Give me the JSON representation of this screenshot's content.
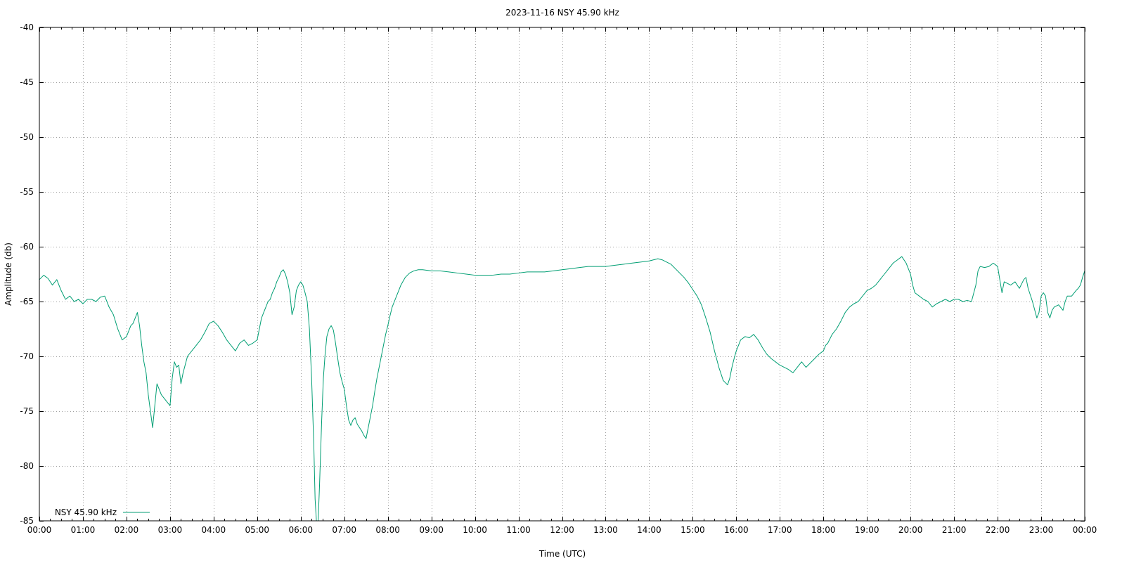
{
  "chart_data": {
    "type": "line",
    "title": "2023-11-16 NSY 45.90 kHz",
    "xlabel": "Time (UTC)",
    "ylabel": "Amplitude (db)",
    "xlim": [
      0,
      24
    ],
    "ylim": [
      -85,
      -40
    ],
    "grid": true,
    "legend_position": "bottom-left",
    "x_ticks": [
      {
        "value": 0,
        "label": "00:00"
      },
      {
        "value": 1,
        "label": "01:00"
      },
      {
        "value": 2,
        "label": "02:00"
      },
      {
        "value": 3,
        "label": "03:00"
      },
      {
        "value": 4,
        "label": "04:00"
      },
      {
        "value": 5,
        "label": "05:00"
      },
      {
        "value": 6,
        "label": "06:00"
      },
      {
        "value": 7,
        "label": "07:00"
      },
      {
        "value": 8,
        "label": "08:00"
      },
      {
        "value": 9,
        "label": "09:00"
      },
      {
        "value": 10,
        "label": "10:00"
      },
      {
        "value": 11,
        "label": "11:00"
      },
      {
        "value": 12,
        "label": "12:00"
      },
      {
        "value": 13,
        "label": "13:00"
      },
      {
        "value": 14,
        "label": "14:00"
      },
      {
        "value": 15,
        "label": "15:00"
      },
      {
        "value": 16,
        "label": "16:00"
      },
      {
        "value": 17,
        "label": "17:00"
      },
      {
        "value": 18,
        "label": "18:00"
      },
      {
        "value": 19,
        "label": "19:00"
      },
      {
        "value": 20,
        "label": "20:00"
      },
      {
        "value": 21,
        "label": "21:00"
      },
      {
        "value": 22,
        "label": "22:00"
      },
      {
        "value": 23,
        "label": "23:00"
      },
      {
        "value": 24,
        "label": "00:00"
      }
    ],
    "y_ticks": [
      {
        "value": -40,
        "label": "-40"
      },
      {
        "value": -45,
        "label": "-45"
      },
      {
        "value": -50,
        "label": "-50"
      },
      {
        "value": -55,
        "label": "-55"
      },
      {
        "value": -60,
        "label": "-60"
      },
      {
        "value": -65,
        "label": "-65"
      },
      {
        "value": -70,
        "label": "-70"
      },
      {
        "value": -75,
        "label": "-75"
      },
      {
        "value": -80,
        "label": "-80"
      },
      {
        "value": -85,
        "label": "-85"
      }
    ],
    "series": [
      {
        "name": "NSY 45.90 kHz",
        "color": "#009e73",
        "x_unit": "hours UTC",
        "points": [
          [
            0.0,
            -63.0
          ],
          [
            0.1,
            -62.6
          ],
          [
            0.2,
            -62.9
          ],
          [
            0.3,
            -63.5
          ],
          [
            0.4,
            -63.0
          ],
          [
            0.5,
            -64.0
          ],
          [
            0.6,
            -64.8
          ],
          [
            0.7,
            -64.5
          ],
          [
            0.8,
            -65.0
          ],
          [
            0.9,
            -64.8
          ],
          [
            1.0,
            -65.2
          ],
          [
            1.1,
            -64.8
          ],
          [
            1.2,
            -64.8
          ],
          [
            1.3,
            -65.0
          ],
          [
            1.4,
            -64.6
          ],
          [
            1.5,
            -64.5
          ],
          [
            1.6,
            -65.5
          ],
          [
            1.7,
            -66.2
          ],
          [
            1.8,
            -67.5
          ],
          [
            1.9,
            -68.5
          ],
          [
            2.0,
            -68.2
          ],
          [
            2.1,
            -67.2
          ],
          [
            2.15,
            -67.0
          ],
          [
            2.2,
            -66.5
          ],
          [
            2.25,
            -66.0
          ],
          [
            2.3,
            -67.2
          ],
          [
            2.35,
            -69.0
          ],
          [
            2.4,
            -70.5
          ],
          [
            2.45,
            -71.5
          ],
          [
            2.5,
            -73.5
          ],
          [
            2.55,
            -75.0
          ],
          [
            2.6,
            -76.5
          ],
          [
            2.65,
            -74.5
          ],
          [
            2.7,
            -72.5
          ],
          [
            2.8,
            -73.5
          ],
          [
            2.9,
            -74.0
          ],
          [
            3.0,
            -74.5
          ],
          [
            3.05,
            -72.0
          ],
          [
            3.1,
            -70.5
          ],
          [
            3.15,
            -71.0
          ],
          [
            3.2,
            -70.8
          ],
          [
            3.25,
            -72.5
          ],
          [
            3.3,
            -71.5
          ],
          [
            3.4,
            -70.0
          ],
          [
            3.5,
            -69.5
          ],
          [
            3.6,
            -69.0
          ],
          [
            3.7,
            -68.5
          ],
          [
            3.8,
            -67.8
          ],
          [
            3.9,
            -67.0
          ],
          [
            4.0,
            -66.8
          ],
          [
            4.1,
            -67.2
          ],
          [
            4.2,
            -67.8
          ],
          [
            4.3,
            -68.5
          ],
          [
            4.4,
            -69.0
          ],
          [
            4.5,
            -69.5
          ],
          [
            4.6,
            -68.8
          ],
          [
            4.7,
            -68.5
          ],
          [
            4.8,
            -69.0
          ],
          [
            4.9,
            -68.8
          ],
          [
            5.0,
            -68.5
          ],
          [
            5.05,
            -67.5
          ],
          [
            5.1,
            -66.5
          ],
          [
            5.15,
            -66.0
          ],
          [
            5.2,
            -65.5
          ],
          [
            5.25,
            -65.0
          ],
          [
            5.3,
            -64.8
          ],
          [
            5.35,
            -64.2
          ],
          [
            5.4,
            -63.8
          ],
          [
            5.45,
            -63.2
          ],
          [
            5.5,
            -62.8
          ],
          [
            5.55,
            -62.3
          ],
          [
            5.6,
            -62.1
          ],
          [
            5.65,
            -62.5
          ],
          [
            5.7,
            -63.2
          ],
          [
            5.75,
            -64.2
          ],
          [
            5.8,
            -66.2
          ],
          [
            5.85,
            -65.5
          ],
          [
            5.9,
            -64.0
          ],
          [
            5.95,
            -63.5
          ],
          [
            6.0,
            -63.2
          ],
          [
            6.05,
            -63.5
          ],
          [
            6.1,
            -64.2
          ],
          [
            6.15,
            -65.0
          ],
          [
            6.2,
            -67.5
          ],
          [
            6.25,
            -72.0
          ],
          [
            6.3,
            -78.0
          ],
          [
            6.33,
            -83.0
          ],
          [
            6.36,
            -85.0
          ],
          [
            6.4,
            -85.0
          ],
          [
            6.43,
            -82.0
          ],
          [
            6.48,
            -76.0
          ],
          [
            6.52,
            -72.0
          ],
          [
            6.56,
            -69.8
          ],
          [
            6.6,
            -68.2
          ],
          [
            6.65,
            -67.5
          ],
          [
            6.7,
            -67.2
          ],
          [
            6.75,
            -67.6
          ],
          [
            6.8,
            -68.8
          ],
          [
            6.85,
            -70.2
          ],
          [
            6.9,
            -71.5
          ],
          [
            6.95,
            -72.3
          ],
          [
            7.0,
            -73.0
          ],
          [
            7.05,
            -74.5
          ],
          [
            7.1,
            -75.8
          ],
          [
            7.15,
            -76.3
          ],
          [
            7.2,
            -75.8
          ],
          [
            7.25,
            -75.6
          ],
          [
            7.3,
            -76.2
          ],
          [
            7.35,
            -76.5
          ],
          [
            7.4,
            -76.8
          ],
          [
            7.45,
            -77.2
          ],
          [
            7.5,
            -77.5
          ],
          [
            7.55,
            -76.5
          ],
          [
            7.6,
            -75.5
          ],
          [
            7.65,
            -74.5
          ],
          [
            7.7,
            -73.2
          ],
          [
            7.75,
            -72.0
          ],
          [
            7.8,
            -71.0
          ],
          [
            7.85,
            -70.0
          ],
          [
            7.9,
            -69.0
          ],
          [
            7.95,
            -68.0
          ],
          [
            8.0,
            -67.2
          ],
          [
            8.05,
            -66.3
          ],
          [
            8.1,
            -65.5
          ],
          [
            8.15,
            -65.0
          ],
          [
            8.2,
            -64.5
          ],
          [
            8.25,
            -64.0
          ],
          [
            8.3,
            -63.5
          ],
          [
            8.4,
            -62.8
          ],
          [
            8.5,
            -62.4
          ],
          [
            8.6,
            -62.2
          ],
          [
            8.7,
            -62.1
          ],
          [
            8.8,
            -62.1
          ],
          [
            9.0,
            -62.2
          ],
          [
            9.2,
            -62.2
          ],
          [
            9.4,
            -62.3
          ],
          [
            9.6,
            -62.4
          ],
          [
            9.8,
            -62.5
          ],
          [
            10.0,
            -62.6
          ],
          [
            10.2,
            -62.6
          ],
          [
            10.4,
            -62.6
          ],
          [
            10.6,
            -62.5
          ],
          [
            10.8,
            -62.5
          ],
          [
            11.0,
            -62.4
          ],
          [
            11.2,
            -62.3
          ],
          [
            11.4,
            -62.3
          ],
          [
            11.6,
            -62.3
          ],
          [
            11.8,
            -62.2
          ],
          [
            12.0,
            -62.1
          ],
          [
            12.2,
            -62.0
          ],
          [
            12.4,
            -61.9
          ],
          [
            12.6,
            -61.8
          ],
          [
            12.8,
            -61.8
          ],
          [
            13.0,
            -61.8
          ],
          [
            13.2,
            -61.7
          ],
          [
            13.4,
            -61.6
          ],
          [
            13.6,
            -61.5
          ],
          [
            13.8,
            -61.4
          ],
          [
            14.0,
            -61.3
          ],
          [
            14.2,
            -61.1
          ],
          [
            14.3,
            -61.2
          ],
          [
            14.4,
            -61.4
          ],
          [
            14.5,
            -61.6
          ],
          [
            14.6,
            -62.0
          ],
          [
            14.7,
            -62.4
          ],
          [
            14.8,
            -62.8
          ],
          [
            14.9,
            -63.3
          ],
          [
            15.0,
            -63.9
          ],
          [
            15.1,
            -64.5
          ],
          [
            15.2,
            -65.3
          ],
          [
            15.3,
            -66.5
          ],
          [
            15.4,
            -67.8
          ],
          [
            15.5,
            -69.5
          ],
          [
            15.6,
            -71.0
          ],
          [
            15.7,
            -72.2
          ],
          [
            15.8,
            -72.6
          ],
          [
            15.85,
            -72.0
          ],
          [
            15.9,
            -71.0
          ],
          [
            15.95,
            -70.2
          ],
          [
            16.0,
            -69.5
          ],
          [
            16.05,
            -69.0
          ],
          [
            16.1,
            -68.5
          ],
          [
            16.2,
            -68.2
          ],
          [
            16.3,
            -68.3
          ],
          [
            16.4,
            -68.0
          ],
          [
            16.5,
            -68.5
          ],
          [
            16.6,
            -69.2
          ],
          [
            16.7,
            -69.8
          ],
          [
            16.8,
            -70.2
          ],
          [
            16.9,
            -70.5
          ],
          [
            17.0,
            -70.8
          ],
          [
            17.1,
            -71.0
          ],
          [
            17.2,
            -71.2
          ],
          [
            17.3,
            -71.5
          ],
          [
            17.4,
            -71.0
          ],
          [
            17.5,
            -70.5
          ],
          [
            17.6,
            -71.0
          ],
          [
            17.7,
            -70.6
          ],
          [
            17.8,
            -70.2
          ],
          [
            17.9,
            -69.8
          ],
          [
            18.0,
            -69.5
          ],
          [
            18.05,
            -69.0
          ],
          [
            18.1,
            -68.8
          ],
          [
            18.2,
            -68.0
          ],
          [
            18.3,
            -67.5
          ],
          [
            18.4,
            -66.8
          ],
          [
            18.5,
            -66.0
          ],
          [
            18.6,
            -65.5
          ],
          [
            18.7,
            -65.2
          ],
          [
            18.8,
            -65.0
          ],
          [
            18.9,
            -64.5
          ],
          [
            19.0,
            -64.0
          ],
          [
            19.1,
            -63.8
          ],
          [
            19.2,
            -63.5
          ],
          [
            19.3,
            -63.0
          ],
          [
            19.4,
            -62.5
          ],
          [
            19.5,
            -62.0
          ],
          [
            19.6,
            -61.5
          ],
          [
            19.7,
            -61.2
          ],
          [
            19.8,
            -60.9
          ],
          [
            19.9,
            -61.5
          ],
          [
            20.0,
            -62.5
          ],
          [
            20.05,
            -63.5
          ],
          [
            20.1,
            -64.2
          ],
          [
            20.2,
            -64.5
          ],
          [
            20.3,
            -64.8
          ],
          [
            20.4,
            -65.0
          ],
          [
            20.5,
            -65.5
          ],
          [
            20.6,
            -65.2
          ],
          [
            20.7,
            -65.0
          ],
          [
            20.8,
            -64.8
          ],
          [
            20.9,
            -65.0
          ],
          [
            21.0,
            -64.8
          ],
          [
            21.1,
            -64.8
          ],
          [
            21.2,
            -65.0
          ],
          [
            21.3,
            -64.9
          ],
          [
            21.4,
            -65.0
          ],
          [
            21.5,
            -63.5
          ],
          [
            21.55,
            -62.2
          ],
          [
            21.6,
            -61.8
          ],
          [
            21.7,
            -61.9
          ],
          [
            21.8,
            -61.8
          ],
          [
            21.9,
            -61.5
          ],
          [
            22.0,
            -61.8
          ],
          [
            22.05,
            -63.0
          ],
          [
            22.1,
            -64.2
          ],
          [
            22.15,
            -63.2
          ],
          [
            22.2,
            -63.3
          ],
          [
            22.3,
            -63.5
          ],
          [
            22.4,
            -63.2
          ],
          [
            22.5,
            -63.8
          ],
          [
            22.6,
            -63.0
          ],
          [
            22.65,
            -62.8
          ],
          [
            22.7,
            -63.8
          ],
          [
            22.8,
            -65.0
          ],
          [
            22.9,
            -66.5
          ],
          [
            22.95,
            -66.0
          ],
          [
            23.0,
            -64.5
          ],
          [
            23.05,
            -64.2
          ],
          [
            23.1,
            -64.5
          ],
          [
            23.15,
            -66.0
          ],
          [
            23.2,
            -66.5
          ],
          [
            23.25,
            -65.8
          ],
          [
            23.3,
            -65.5
          ],
          [
            23.4,
            -65.3
          ],
          [
            23.5,
            -65.8
          ],
          [
            23.55,
            -65.0
          ],
          [
            23.6,
            -64.5
          ],
          [
            23.7,
            -64.5
          ],
          [
            23.8,
            -64.0
          ],
          [
            23.85,
            -63.8
          ],
          [
            23.9,
            -63.5
          ],
          [
            23.95,
            -62.8
          ],
          [
            24.0,
            -62.2
          ]
        ]
      }
    ]
  }
}
